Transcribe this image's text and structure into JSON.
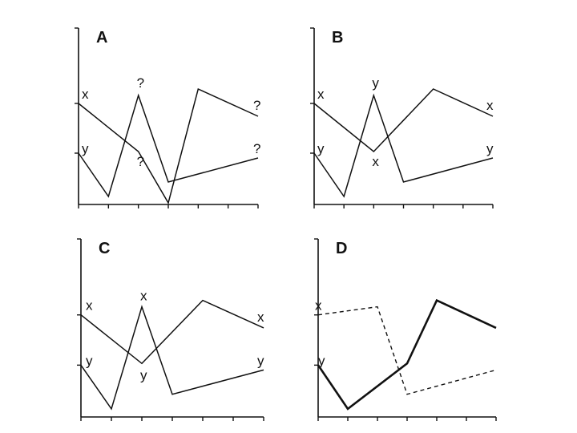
{
  "chart_data": [
    {
      "type": "line",
      "title": "A",
      "x": [
        0,
        1,
        2,
        3,
        4,
        5,
        6
      ],
      "ylim": [
        0,
        10
      ],
      "series": [
        {
          "name": "x",
          "style": "solid",
          "values": [
            6.3,
            null,
            3.3,
            0.1,
            7.2,
            null,
            5.5
          ]
        },
        {
          "name": "y",
          "style": "solid",
          "values": [
            3.2,
            0.5,
            6.8,
            1.4,
            null,
            null,
            2.9
          ]
        }
      ],
      "annotations": [
        {
          "text": "x",
          "x": 0,
          "y": 6.3
        },
        {
          "text": "y",
          "x": 0,
          "y": 3.2
        },
        {
          "text": "?",
          "x": 2,
          "y": 6.8
        },
        {
          "text": "?",
          "x": 2,
          "y": 3.3
        },
        {
          "text": "?",
          "x": 6,
          "y": 5.5
        },
        {
          "text": "?",
          "x": 6,
          "y": 2.9
        }
      ]
    },
    {
      "type": "line",
      "title": "B",
      "x": [
        0,
        1,
        2,
        3,
        4,
        5,
        6
      ],
      "ylim": [
        0,
        10
      ],
      "series": [
        {
          "name": "x",
          "style": "solid",
          "values": [
            6.3,
            null,
            3.3,
            null,
            7.2,
            null,
            5.5
          ]
        },
        {
          "name": "y",
          "style": "solid",
          "values": [
            3.2,
            0.5,
            6.8,
            1.4,
            null,
            null,
            2.9
          ]
        }
      ],
      "annotations": [
        {
          "text": "x",
          "x": 0,
          "y": 6.3
        },
        {
          "text": "y",
          "x": 0,
          "y": 3.2
        },
        {
          "text": "y",
          "x": 2,
          "y": 6.8
        },
        {
          "text": "x",
          "x": 2,
          "y": 3.3
        },
        {
          "text": "x",
          "x": 6,
          "y": 5.5
        },
        {
          "text": "y",
          "x": 6,
          "y": 2.9
        }
      ]
    },
    {
      "type": "line",
      "title": "C",
      "x": [
        0,
        1,
        2,
        3,
        4,
        5,
        6
      ],
      "ylim": [
        0,
        10
      ],
      "series": [
        {
          "name": "x",
          "style": "solid",
          "values": [
            6.3,
            null,
            3.3,
            null,
            7.2,
            null,
            5.5
          ]
        },
        {
          "name": "y",
          "style": "solid",
          "values": [
            3.2,
            0.5,
            6.8,
            1.4,
            null,
            null,
            2.9
          ]
        }
      ],
      "annotations": [
        {
          "text": "x",
          "x": 0,
          "y": 6.3
        },
        {
          "text": "y",
          "x": 0,
          "y": 3.2
        },
        {
          "text": "x",
          "x": 2,
          "y": 6.8
        },
        {
          "text": "y",
          "x": 2,
          "y": 3.3
        },
        {
          "text": "x",
          "x": 6,
          "y": 5.5
        },
        {
          "text": "y",
          "x": 6,
          "y": 2.9
        }
      ]
    },
    {
      "type": "line",
      "title": "D",
      "x": [
        0,
        1,
        2,
        3,
        4,
        5,
        6
      ],
      "ylim": [
        0,
        10
      ],
      "series": [
        {
          "name": "x",
          "style": "dashed",
          "values": [
            6.3,
            null,
            6.8,
            1.4,
            null,
            null,
            2.9
          ]
        },
        {
          "name": "y",
          "style": "bold",
          "values": [
            3.2,
            0.5,
            null,
            3.3,
            7.2,
            null,
            5.5
          ]
        }
      ],
      "annotations": [
        {
          "text": "x",
          "x": 0,
          "y": 6.3
        },
        {
          "text": "y",
          "x": 0,
          "y": 3.2
        }
      ]
    }
  ]
}
